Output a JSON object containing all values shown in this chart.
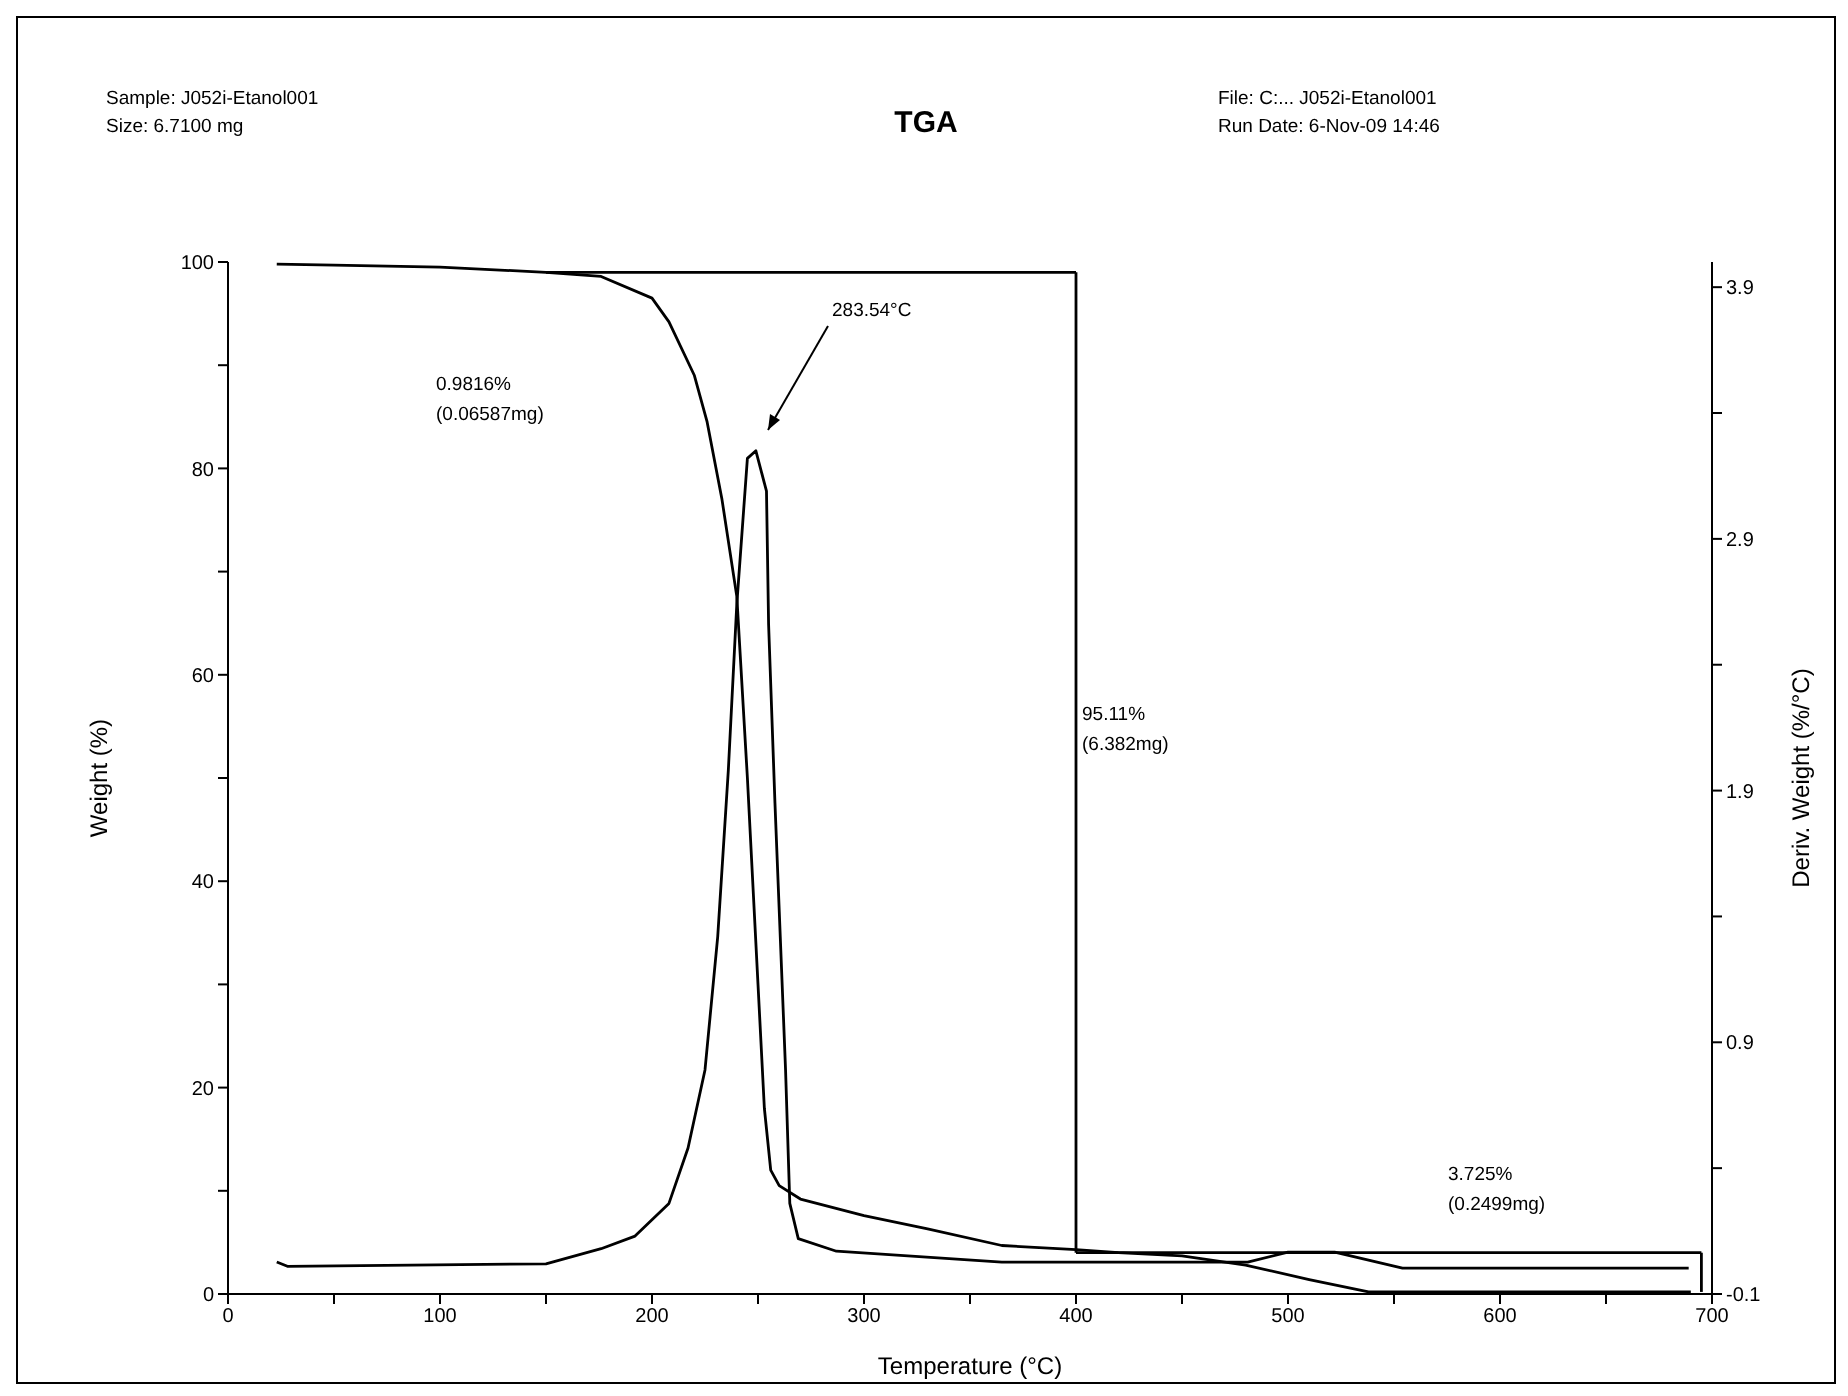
{
  "chart_data": {
    "type": "line",
    "title": "TGA",
    "xlabel": "Temperature (°C)",
    "ylabel": "Weight (%)",
    "y2label": "Deriv. Weight (%/°C)",
    "annotations": [
      "Sample: J052i-Etanol001",
      "Size:  6.7100 mg",
      "File: C:... J052i-Etanol001",
      "Run Date: 6-Nov-09 14:46",
      "0.9816%",
      "(0.06587mg)",
      "283.54°C",
      "95.11%",
      "(6.382mg)",
      "3.725%",
      "(0.2499mg)"
    ],
    "xlim": [
      0,
      700
    ],
    "xticks": [
      0,
      {
        "value": 50,
        "label": null
      },
      100,
      {
        "value": 150,
        "label": null
      },
      200,
      {
        "value": 250,
        "label": null
      },
      300,
      {
        "value": 350,
        "label": null
      },
      400,
      {
        "value": 450,
        "label": null
      },
      500,
      {
        "value": 550,
        "label": null
      },
      600,
      {
        "value": 650,
        "label": null
      },
      700
    ],
    "ylim": [
      0,
      100
    ],
    "yticks": [
      0,
      {
        "value": 10,
        "label": null
      },
      20,
      {
        "value": 30,
        "label": null
      },
      40,
      {
        "value": 50,
        "label": null
      },
      60,
      {
        "value": 70,
        "label": null
      },
      80,
      {
        "value": 90,
        "label": null
      },
      100
    ],
    "y2lim": [
      -0.1,
      4.0
    ],
    "y2ticks": [
      -0.1,
      {
        "value": 0.4,
        "label": null
      },
      0.9,
      {
        "value": 1.4,
        "label": null
      },
      1.9,
      {
        "value": 2.4,
        "label": null
      },
      2.9,
      {
        "value": 3.4,
        "label": null
      },
      3.9
    ],
    "marker": "none",
    "line_style": "solid",
    "series": [
      {
        "color": "#000000",
        "x": [
          23,
          50,
          100,
          150,
          176,
          200,
          208,
          220,
          226,
          233,
          240,
          245,
          250,
          253,
          256,
          260,
          270,
          300,
          330,
          365,
          400,
          420,
          450,
          480,
          510,
          538,
          690
        ],
        "values": [
          99.8,
          99.7,
          99.5,
          99.0,
          98.6,
          96.5,
          94.2,
          89,
          84.5,
          77,
          67.6,
          50,
          30,
          18,
          12,
          10.5,
          9.2,
          7.6,
          6.3,
          4.7,
          4.3,
          4.0,
          3.7,
          2.8,
          1.4,
          0.2,
          0.2
        ]
      },
      {
        "color": "#000000",
        "axis": "y2",
        "x": [
          23,
          28,
          150,
          176,
          192,
          208,
          217,
          225,
          231,
          236,
          240,
          245,
          249,
          254,
          255,
          258,
          263,
          265,
          269,
          287,
          365,
          400,
          481,
          500,
          522,
          554,
          689
        ],
        "values": [
          0.027,
          0.01,
          0.02,
          0.08,
          0.13,
          0.26,
          0.48,
          0.79,
          1.32,
          1.98,
          2.64,
          3.22,
          3.25,
          3.09,
          2.56,
          1.85,
          0.79,
          0.26,
          0.12,
          0.07,
          0.027,
          0.027,
          0.027,
          0.066,
          0.066,
          0.003,
          0.003
        ]
      },
      {
        "color": "#000000",
        "x": [
          150,
          400
        ],
        "values": [
          99.0,
          99.0
        ]
      },
      {
        "color": "#000000",
        "x": [
          400,
          695
        ],
        "values": [
          4.0,
          4.0
        ]
      },
      {
        "color": "#000000",
        "x": [
          400,
          400
        ],
        "values": [
          99.0,
          4.0
        ]
      },
      {
        "color": "#000000",
        "x": [
          695,
          695
        ],
        "values": [
          4.0,
          0.2
        ]
      }
    ]
  }
}
